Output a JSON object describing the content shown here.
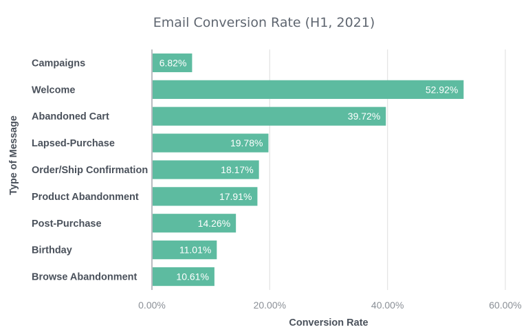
{
  "chart_data": {
    "type": "bar",
    "orientation": "horizontal",
    "title": "Email Conversion Rate (H1, 2021)",
    "xlabel": "Conversion Rate",
    "ylabel": "Type of Message",
    "categories": [
      "Campaigns",
      "Welcome",
      "Abandoned Cart",
      "Lapsed-Purchase",
      "Order/Ship Confirmation",
      "Product Abandonment",
      "Post-Purchase",
      "Birthday",
      "Browse Abandonment"
    ],
    "values": [
      6.82,
      52.92,
      39.72,
      19.78,
      18.17,
      17.91,
      14.26,
      11.01,
      10.61
    ],
    "value_labels": [
      "6.82%",
      "52.92%",
      "39.72%",
      "19.78%",
      "18.17%",
      "17.91%",
      "14.26%",
      "11.01%",
      "10.61%"
    ],
    "xlim": [
      0,
      60
    ],
    "xticks": [
      0,
      20,
      40,
      60
    ],
    "xtick_labels": [
      "0.00%",
      "20.00%",
      "40.00%",
      "60.00%"
    ],
    "grid": true,
    "legend": "none",
    "colors": {
      "bar": "#5dbba0",
      "bar_label": "#ffffff",
      "title": "#5f6670",
      "category_label": "#4a515b",
      "tick_label": "#8a8f96",
      "gridline": "#e2e2e2"
    }
  }
}
